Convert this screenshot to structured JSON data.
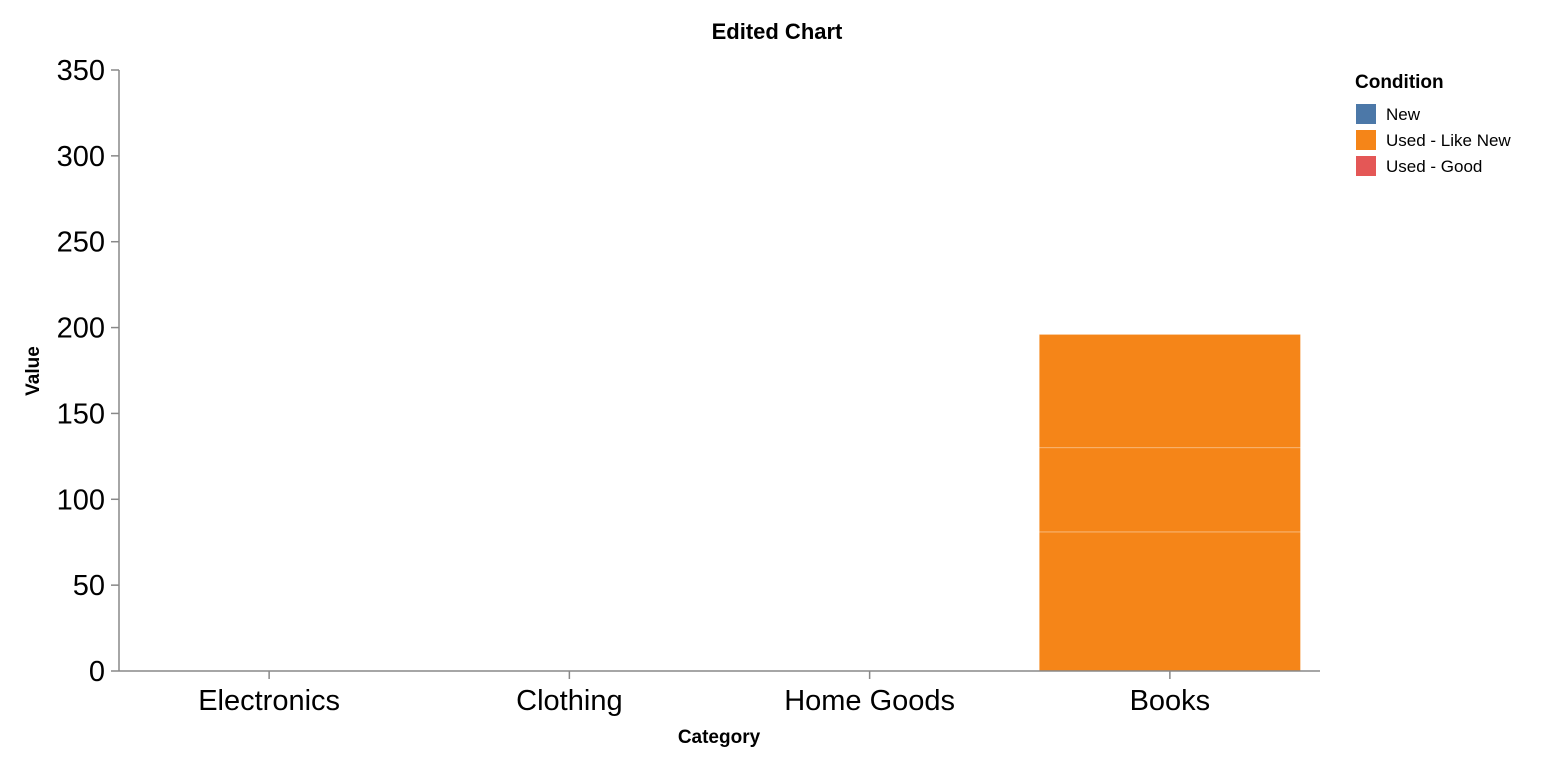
{
  "chart_data": {
    "type": "bar",
    "stacked": true,
    "title": "Edited Chart",
    "xlabel": "Category",
    "ylabel": "Value",
    "categories": [
      "Electronics",
      "Clothing",
      "Home Goods",
      "Books"
    ],
    "ylim": [
      0,
      350
    ],
    "yticks": [
      0,
      50,
      100,
      150,
      200,
      250,
      300,
      350
    ],
    "grid": false,
    "legend": {
      "title": "Condition",
      "placement": "top-right",
      "entries": [
        {
          "name": "New",
          "color": "#4c78a8"
        },
        {
          "name": "Used - Like New",
          "color": "#f58518"
        },
        {
          "name": "Used - Good",
          "color": "#e45756"
        }
      ]
    },
    "segments": [
      {
        "category": "Books",
        "condition": "Used - Like New",
        "start": 0,
        "end": 81
      },
      {
        "category": "Books",
        "condition": "Used - Like New",
        "start": 81,
        "end": 130
      },
      {
        "category": "Books",
        "condition": "Used - Like New",
        "start": 130,
        "end": 196
      }
    ]
  }
}
